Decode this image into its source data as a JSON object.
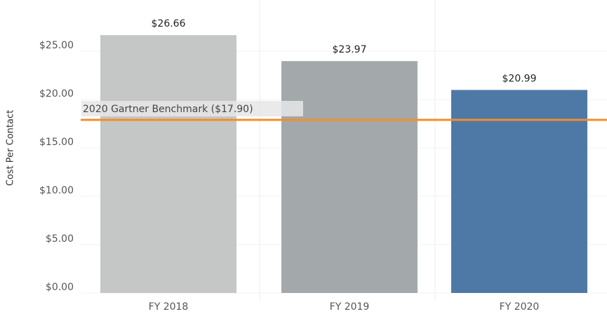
{
  "chart_data": {
    "type": "bar",
    "y_label": "Cost Per Contact",
    "categories": [
      "FY 2018",
      "FY 2019",
      "FY 2020"
    ],
    "values": [
      26.66,
      23.97,
      20.99
    ],
    "value_labels": [
      "$26.66",
      "$23.97",
      "$20.99"
    ],
    "colors": [
      "#c5c6c6",
      "#a3a8ab",
      "#4e79a7"
    ],
    "ylim": [
      0,
      30
    ],
    "yticks": [
      {
        "value": 0,
        "label": "$0.00"
      },
      {
        "value": 5,
        "label": "$5.00"
      },
      {
        "value": 10,
        "label": "$10.00"
      },
      {
        "value": 15,
        "label": "$15.00"
      },
      {
        "value": 20,
        "label": "$20.00"
      },
      {
        "value": 25,
        "label": "$25.00"
      }
    ],
    "grid": true,
    "reference_line": {
      "value": 17.9,
      "label": "2020 Gartner Benchmark ($17.90)",
      "color": "#f28e2b"
    }
  }
}
